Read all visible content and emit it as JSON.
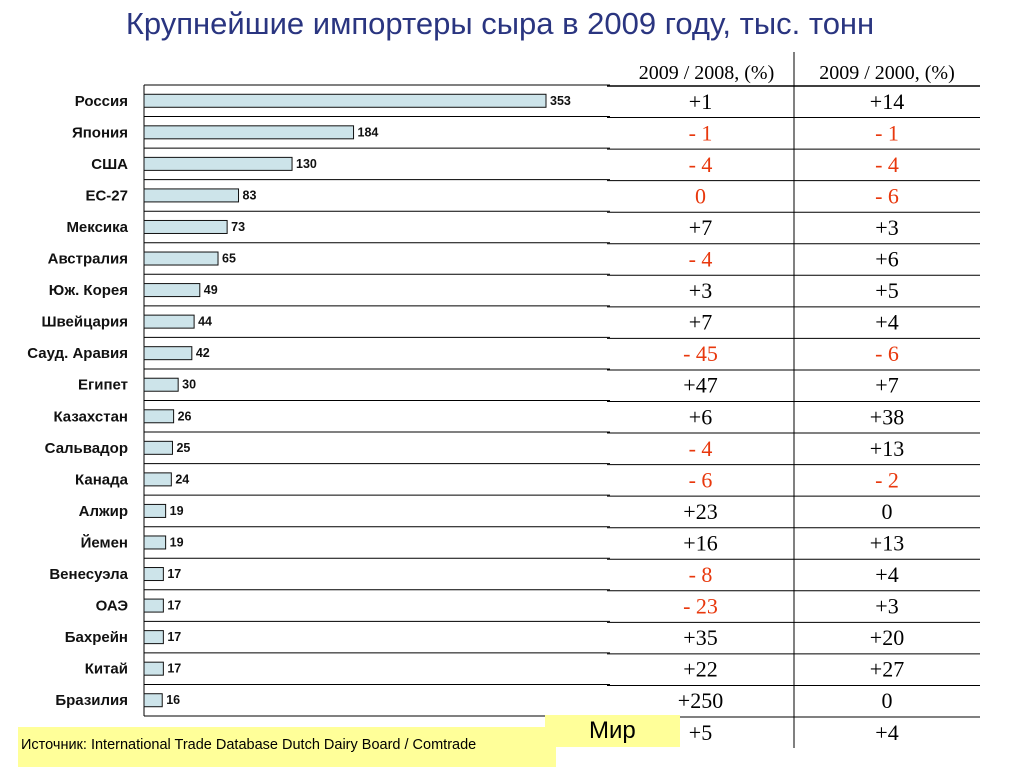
{
  "title": "Крупнейшие импортеры сыра в 2009 году, тыс. тонн",
  "source": "Источник: International Trade Database Dutch Dairy Board / Comtrade",
  "table": {
    "headers": [
      "2009 / 2008, (%)",
      "2009 / 2000, (%)"
    ],
    "rows": [
      [
        "+1",
        "+14"
      ],
      [
        "- 1",
        "- 1"
      ],
      [
        "- 4",
        "- 4"
      ],
      [
        "0",
        "- 6"
      ],
      [
        "+7",
        "+3"
      ],
      [
        "- 4",
        "+6"
      ],
      [
        "+3",
        "+5"
      ],
      [
        "+7",
        "+4"
      ],
      [
        "- 45",
        "- 6"
      ],
      [
        "+47",
        "+7"
      ],
      [
        "+6",
        "+38"
      ],
      [
        "- 4",
        "+13"
      ],
      [
        "- 6",
        "- 2"
      ],
      [
        "+23",
        "0"
      ],
      [
        "+16",
        "+13"
      ],
      [
        "- 8",
        "+4"
      ],
      [
        "- 23",
        "+3"
      ],
      [
        "+35",
        "+20"
      ],
      [
        "+22",
        "+27"
      ],
      [
        "+250",
        "0"
      ]
    ],
    "negative_rows": [
      [
        false,
        false
      ],
      [
        true,
        true
      ],
      [
        true,
        true
      ],
      [
        true,
        true
      ],
      [
        false,
        false
      ],
      [
        true,
        false
      ],
      [
        false,
        false
      ],
      [
        false,
        false
      ],
      [
        true,
        true
      ],
      [
        false,
        false
      ],
      [
        false,
        false
      ],
      [
        true,
        false
      ],
      [
        true,
        true
      ],
      [
        false,
        false
      ],
      [
        false,
        false
      ],
      [
        true,
        false
      ],
      [
        true,
        false
      ],
      [
        false,
        false
      ],
      [
        false,
        false
      ],
      [
        false,
        false
      ]
    ],
    "world_label": "Мир",
    "world_row": [
      "+5",
      "+4"
    ]
  },
  "colors": {
    "title": "#2a3580",
    "bar_fill": "#cde4ea",
    "negative": "#e8380d",
    "positive": "#000000",
    "highlight": "#ffff99"
  },
  "chart_data": {
    "type": "bar",
    "orientation": "horizontal",
    "categories": [
      "Россия",
      "Япония",
      "США",
      "ЕС-27",
      "Мексика",
      "Австралия",
      "Юж. Корея",
      "Швейцария",
      "Сауд. Аравия",
      "Египет",
      "Казахстан",
      "Сальвадор",
      "Канада",
      "Алжир",
      "Йемен",
      "Венесуэла",
      "ОАЭ",
      "Бахрейн",
      "Китай",
      "Бразилия"
    ],
    "values": [
      353,
      184,
      130,
      83,
      73,
      65,
      49,
      44,
      42,
      30,
      26,
      25,
      24,
      19,
      19,
      17,
      17,
      17,
      17,
      16
    ],
    "title": "Крупнейшие импортеры сыра в 2009 году, тыс. тонн",
    "xlabel": "",
    "ylabel": "",
    "data_labels": true,
    "grid": true
  }
}
